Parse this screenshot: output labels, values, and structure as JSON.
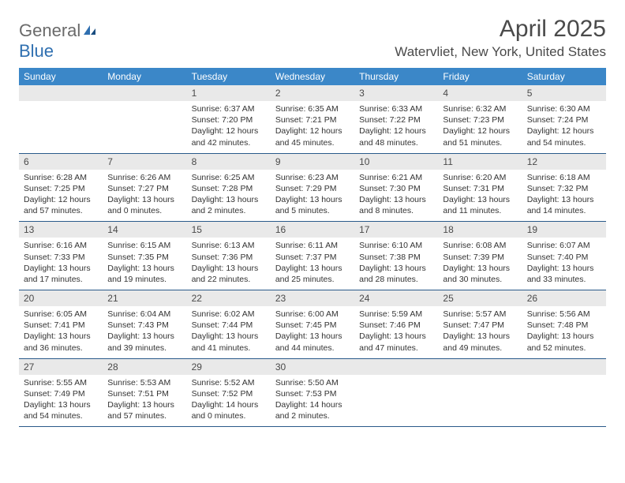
{
  "logo": {
    "part1": "General",
    "part2": "Blue"
  },
  "title": "April 2025",
  "location": "Watervliet, New York, United States",
  "colors": {
    "header_bg": "#3b87c8",
    "header_text": "#ffffff",
    "daynum_bg": "#e9e9e9",
    "row_border": "#2a5a8a",
    "logo_gray": "#6a6a6a",
    "logo_blue": "#2f6fb0"
  },
  "day_headers": [
    "Sunday",
    "Monday",
    "Tuesday",
    "Wednesday",
    "Thursday",
    "Friday",
    "Saturday"
  ],
  "weeks": [
    [
      null,
      null,
      {
        "n": "1",
        "sr": "6:37 AM",
        "ss": "7:20 PM",
        "dl": "12 hours and 42 minutes."
      },
      {
        "n": "2",
        "sr": "6:35 AM",
        "ss": "7:21 PM",
        "dl": "12 hours and 45 minutes."
      },
      {
        "n": "3",
        "sr": "6:33 AM",
        "ss": "7:22 PM",
        "dl": "12 hours and 48 minutes."
      },
      {
        "n": "4",
        "sr": "6:32 AM",
        "ss": "7:23 PM",
        "dl": "12 hours and 51 minutes."
      },
      {
        "n": "5",
        "sr": "6:30 AM",
        "ss": "7:24 PM",
        "dl": "12 hours and 54 minutes."
      }
    ],
    [
      {
        "n": "6",
        "sr": "6:28 AM",
        "ss": "7:25 PM",
        "dl": "12 hours and 57 minutes."
      },
      {
        "n": "7",
        "sr": "6:26 AM",
        "ss": "7:27 PM",
        "dl": "13 hours and 0 minutes."
      },
      {
        "n": "8",
        "sr": "6:25 AM",
        "ss": "7:28 PM",
        "dl": "13 hours and 2 minutes."
      },
      {
        "n": "9",
        "sr": "6:23 AM",
        "ss": "7:29 PM",
        "dl": "13 hours and 5 minutes."
      },
      {
        "n": "10",
        "sr": "6:21 AM",
        "ss": "7:30 PM",
        "dl": "13 hours and 8 minutes."
      },
      {
        "n": "11",
        "sr": "6:20 AM",
        "ss": "7:31 PM",
        "dl": "13 hours and 11 minutes."
      },
      {
        "n": "12",
        "sr": "6:18 AM",
        "ss": "7:32 PM",
        "dl": "13 hours and 14 minutes."
      }
    ],
    [
      {
        "n": "13",
        "sr": "6:16 AM",
        "ss": "7:33 PM",
        "dl": "13 hours and 17 minutes."
      },
      {
        "n": "14",
        "sr": "6:15 AM",
        "ss": "7:35 PM",
        "dl": "13 hours and 19 minutes."
      },
      {
        "n": "15",
        "sr": "6:13 AM",
        "ss": "7:36 PM",
        "dl": "13 hours and 22 minutes."
      },
      {
        "n": "16",
        "sr": "6:11 AM",
        "ss": "7:37 PM",
        "dl": "13 hours and 25 minutes."
      },
      {
        "n": "17",
        "sr": "6:10 AM",
        "ss": "7:38 PM",
        "dl": "13 hours and 28 minutes."
      },
      {
        "n": "18",
        "sr": "6:08 AM",
        "ss": "7:39 PM",
        "dl": "13 hours and 30 minutes."
      },
      {
        "n": "19",
        "sr": "6:07 AM",
        "ss": "7:40 PM",
        "dl": "13 hours and 33 minutes."
      }
    ],
    [
      {
        "n": "20",
        "sr": "6:05 AM",
        "ss": "7:41 PM",
        "dl": "13 hours and 36 minutes."
      },
      {
        "n": "21",
        "sr": "6:04 AM",
        "ss": "7:43 PM",
        "dl": "13 hours and 39 minutes."
      },
      {
        "n": "22",
        "sr": "6:02 AM",
        "ss": "7:44 PM",
        "dl": "13 hours and 41 minutes."
      },
      {
        "n": "23",
        "sr": "6:00 AM",
        "ss": "7:45 PM",
        "dl": "13 hours and 44 minutes."
      },
      {
        "n": "24",
        "sr": "5:59 AM",
        "ss": "7:46 PM",
        "dl": "13 hours and 47 minutes."
      },
      {
        "n": "25",
        "sr": "5:57 AM",
        "ss": "7:47 PM",
        "dl": "13 hours and 49 minutes."
      },
      {
        "n": "26",
        "sr": "5:56 AM",
        "ss": "7:48 PM",
        "dl": "13 hours and 52 minutes."
      }
    ],
    [
      {
        "n": "27",
        "sr": "5:55 AM",
        "ss": "7:49 PM",
        "dl": "13 hours and 54 minutes."
      },
      {
        "n": "28",
        "sr": "5:53 AM",
        "ss": "7:51 PM",
        "dl": "13 hours and 57 minutes."
      },
      {
        "n": "29",
        "sr": "5:52 AM",
        "ss": "7:52 PM",
        "dl": "14 hours and 0 minutes."
      },
      {
        "n": "30",
        "sr": "5:50 AM",
        "ss": "7:53 PM",
        "dl": "14 hours and 2 minutes."
      },
      null,
      null,
      null
    ]
  ],
  "labels": {
    "sunrise": "Sunrise:",
    "sunset": "Sunset:",
    "daylight": "Daylight:"
  }
}
